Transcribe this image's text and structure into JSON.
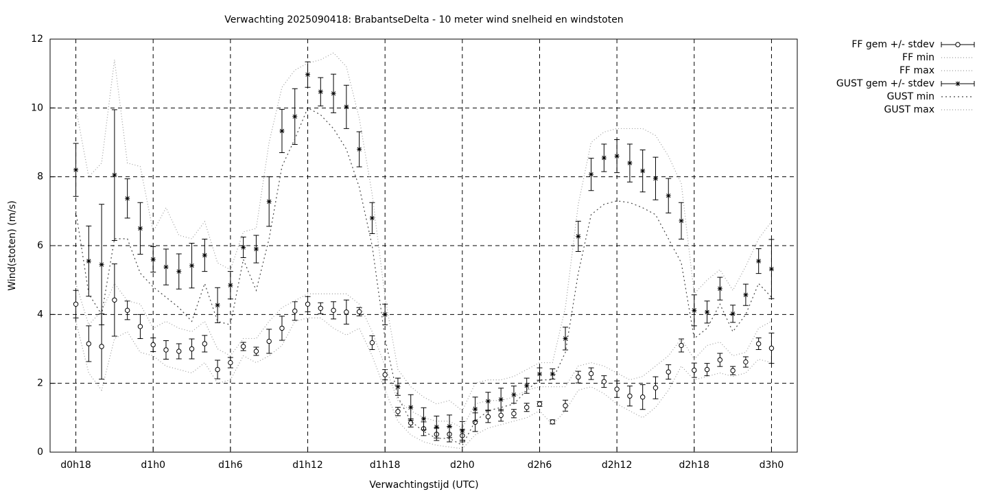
{
  "chart_data": {
    "type": "line",
    "title": "Verwachting 2025090418: BrabantseDelta - 10 meter wind snelheid en windstoten",
    "x_label": "Verwachtingstijd (UTC)",
    "y_label": "Wind(stoten) (m/s)",
    "xlim": [
      16,
      74
    ],
    "ylim": [
      0,
      12
    ],
    "xticks": [
      {
        "value": 18,
        "label": "d0h18"
      },
      {
        "value": 24,
        "label": "d1h0"
      },
      {
        "value": 30,
        "label": "d1h6"
      },
      {
        "value": 36,
        "label": "d1h12"
      },
      {
        "value": 42,
        "label": "d1h18"
      },
      {
        "value": 48,
        "label": "d2h0"
      },
      {
        "value": 54,
        "label": "d2h6"
      },
      {
        "value": 60,
        "label": "d2h12"
      },
      {
        "value": 66,
        "label": "d2h18"
      },
      {
        "value": 72,
        "label": "d3h0"
      }
    ],
    "yticks": [
      0,
      2,
      4,
      6,
      8,
      10,
      12
    ],
    "grid": true,
    "legend": "outside-top-right",
    "x": [
      18,
      19,
      20,
      21,
      22,
      23,
      24,
      25,
      26,
      27,
      28,
      29,
      30,
      31,
      32,
      33,
      34,
      35,
      36,
      37,
      38,
      39,
      40,
      41,
      42,
      43,
      44,
      45,
      46,
      47,
      48,
      49,
      50,
      51,
      52,
      53,
      54,
      55,
      56,
      57,
      58,
      59,
      60,
      61,
      62,
      63,
      64,
      65,
      66,
      67,
      68,
      69,
      70,
      71,
      72
    ],
    "series": [
      {
        "name": "FF gem +/- stdev",
        "color": "#000000",
        "marker": "circle",
        "values": [
          4.3,
          3.15,
          3.07,
          4.42,
          4.12,
          3.65,
          3.12,
          2.97,
          2.93,
          3.0,
          3.15,
          2.4,
          2.6,
          3.07,
          2.93,
          3.22,
          3.6,
          4.1,
          4.3,
          4.18,
          4.12,
          4.07,
          4.08,
          3.18,
          2.25,
          1.18,
          0.85,
          0.68,
          0.52,
          0.52,
          0.48,
          0.87,
          1.03,
          1.07,
          1.12,
          1.3,
          1.4,
          0.88,
          1.35,
          2.18,
          2.28,
          2.05,
          1.83,
          1.63,
          1.6,
          1.87,
          2.33,
          3.1,
          2.38,
          2.4,
          2.68,
          2.37,
          2.62,
          3.15,
          3.02
        ],
        "errors": [
          0.4,
          0.52,
          0.95,
          1.05,
          0.27,
          0.35,
          0.2,
          0.27,
          0.22,
          0.29,
          0.24,
          0.27,
          0.15,
          0.12,
          0.12,
          0.35,
          0.35,
          0.27,
          0.22,
          0.16,
          0.25,
          0.35,
          0.12,
          0.2,
          0.15,
          0.12,
          0.12,
          0.2,
          0.18,
          0.22,
          0.18,
          0.27,
          0.17,
          0.17,
          0.12,
          0.12,
          0.07,
          0.06,
          0.16,
          0.17,
          0.17,
          0.17,
          0.24,
          0.29,
          0.36,
          0.32,
          0.21,
          0.19,
          0.21,
          0.18,
          0.19,
          0.12,
          0.15,
          0.17,
          0.44
        ]
      },
      {
        "name": "FF min",
        "color": "#999999",
        "dash": "1 3",
        "values": [
          3.8,
          2.3,
          1.8,
          3.3,
          3.5,
          2.9,
          2.8,
          2.5,
          2.4,
          2.3,
          2.6,
          2.0,
          2.1,
          2.8,
          2.6,
          2.8,
          3.1,
          3.8,
          3.9,
          3.9,
          3.6,
          3.4,
          3.6,
          2.8,
          1.8,
          0.9,
          0.5,
          0.3,
          0.2,
          0.15,
          0.1,
          0.5,
          0.7,
          0.8,
          0.9,
          1.0,
          1.2,
          0.8,
          1.2,
          1.8,
          1.9,
          1.7,
          1.4,
          1.2,
          1.0,
          1.3,
          1.8,
          2.5,
          2.1,
          2.2,
          2.3,
          2.2,
          2.3,
          2.7,
          2.6
        ]
      },
      {
        "name": "FF max",
        "color": "#999999",
        "dash": "1 3",
        "values": [
          4.9,
          3.7,
          4.1,
          4.9,
          4.4,
          4.3,
          3.6,
          3.8,
          3.6,
          3.5,
          3.8,
          3.0,
          2.8,
          3.3,
          3.3,
          3.8,
          4.2,
          4.4,
          4.6,
          4.6,
          4.6,
          4.6,
          4.3,
          3.5,
          2.5,
          1.5,
          1.2,
          1.0,
          0.9,
          0.9,
          0.7,
          1.4,
          1.5,
          1.5,
          1.6,
          1.8,
          1.9,
          1.9,
          1.9,
          2.5,
          2.6,
          2.5,
          2.3,
          2.1,
          2.2,
          2.5,
          2.8,
          3.3,
          2.7,
          3.1,
          3.2,
          2.8,
          2.9,
          3.6,
          3.8
        ]
      },
      {
        "name": "GUST gem +/- stdev",
        "color": "#000000",
        "marker": "star",
        "values": [
          8.2,
          5.55,
          5.45,
          8.05,
          7.37,
          6.5,
          5.6,
          5.38,
          5.25,
          5.42,
          5.72,
          4.27,
          4.85,
          5.95,
          5.9,
          7.28,
          9.33,
          9.75,
          10.97,
          10.47,
          10.42,
          10.03,
          8.8,
          6.8,
          4.0,
          1.9,
          1.3,
          0.97,
          0.73,
          0.75,
          0.62,
          1.25,
          1.48,
          1.53,
          1.67,
          1.93,
          2.27,
          2.27,
          3.3,
          6.27,
          8.07,
          8.55,
          8.6,
          8.4,
          8.17,
          7.95,
          7.45,
          6.72,
          4.12,
          4.07,
          4.75,
          4.02,
          4.57,
          5.55,
          5.32
        ],
        "errors": [
          0.77,
          1.02,
          1.75,
          1.9,
          0.57,
          0.75,
          0.37,
          0.52,
          0.51,
          0.65,
          0.47,
          0.51,
          0.4,
          0.3,
          0.4,
          0.72,
          0.63,
          0.81,
          0.37,
          0.41,
          0.56,
          0.63,
          0.51,
          0.45,
          0.3,
          0.25,
          0.37,
          0.32,
          0.32,
          0.33,
          0.27,
          0.35,
          0.26,
          0.33,
          0.25,
          0.22,
          0.18,
          0.15,
          0.33,
          0.44,
          0.47,
          0.4,
          0.48,
          0.55,
          0.61,
          0.62,
          0.5,
          0.53,
          0.45,
          0.32,
          0.33,
          0.25,
          0.31,
          0.36,
          0.86
        ]
      },
      {
        "name": "GUST min",
        "color": "#444444",
        "dash": "2 4",
        "values": [
          7.0,
          4.6,
          4.0,
          6.2,
          6.2,
          5.2,
          4.8,
          4.5,
          4.2,
          3.8,
          4.9,
          3.8,
          3.7,
          5.6,
          4.7,
          6.2,
          8.3,
          9.1,
          10.0,
          9.8,
          9.4,
          8.8,
          7.7,
          6.0,
          3.3,
          1.6,
          0.9,
          0.6,
          0.4,
          0.4,
          0.2,
          0.9,
          1.2,
          1.3,
          1.4,
          1.8,
          2.1,
          2.1,
          2.9,
          5.2,
          6.9,
          7.2,
          7.3,
          7.25,
          7.1,
          6.9,
          6.2,
          5.5,
          3.3,
          3.6,
          4.3,
          3.5,
          4.0,
          4.9,
          4.5
        ]
      },
      {
        "name": "GUST max",
        "color": "#999999",
        "dash": "1 3",
        "values": [
          10.0,
          8.0,
          8.4,
          11.4,
          8.4,
          8.3,
          6.4,
          7.1,
          6.3,
          6.2,
          6.7,
          5.5,
          5.3,
          6.4,
          6.5,
          9.0,
          10.6,
          11.1,
          11.3,
          11.4,
          11.6,
          11.2,
          9.7,
          7.5,
          4.5,
          2.4,
          1.9,
          1.6,
          1.4,
          1.5,
          1.2,
          2.0,
          2.1,
          2.1,
          2.2,
          2.4,
          2.6,
          2.6,
          4.2,
          7.2,
          9.0,
          9.3,
          9.4,
          9.4,
          9.4,
          9.2,
          8.6,
          7.8,
          4.6,
          5.0,
          5.3,
          4.7,
          5.4,
          6.2,
          6.7
        ]
      }
    ]
  }
}
